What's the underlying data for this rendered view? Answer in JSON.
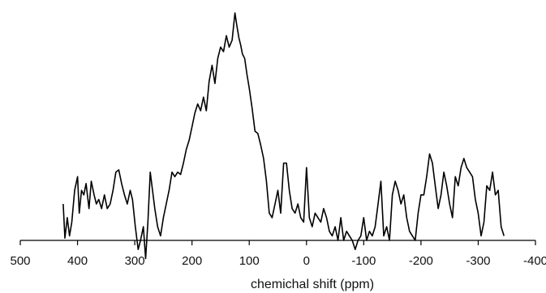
{
  "chart_data": {
    "type": "line",
    "title": "",
    "xlabel": "chemichal shift (ppm)",
    "ylabel": "",
    "xlim": [
      500,
      -400
    ],
    "x_reversed": true,
    "ylim": [
      0,
      100
    ],
    "y_axis_visible": false,
    "grid": false,
    "legend": "none",
    "x_ticks": [
      500,
      400,
      300,
      200,
      100,
      0,
      -100,
      -200,
      -300,
      -400
    ],
    "x_tick_labels": [
      "500",
      "400",
      "300",
      "200",
      "100",
      "0",
      "-100",
      "-200",
      "-300",
      "-400"
    ],
    "series": [
      {
        "color": "#000000",
        "x": [
          425,
          422,
          418,
          414,
          410,
          405,
          400,
          397,
          393,
          389,
          385,
          380,
          376,
          371,
          367,
          363,
          358,
          353,
          348,
          343,
          338,
          333,
          328,
          323,
          318,
          313,
          308,
          304,
          299,
          294,
          290,
          285,
          281,
          277,
          273,
          269,
          265,
          260,
          255,
          250,
          245,
          240,
          235,
          230,
          225,
          220,
          215,
          210,
          205,
          200,
          195,
          190,
          185,
          180,
          175,
          170,
          165,
          160,
          155,
          150,
          145,
          140,
          135,
          130,
          125,
          122,
          118,
          115,
          112,
          108,
          104,
          100,
          95,
          90,
          85,
          80,
          75,
          70,
          65,
          60,
          55,
          50,
          45,
          40,
          35,
          30,
          25,
          20,
          15,
          10,
          5,
          0,
          -5,
          -10,
          -15,
          -20,
          -25,
          -30,
          -35,
          -40,
          -45,
          -50,
          -55,
          -60,
          -65,
          -70,
          -75,
          -80,
          -85,
          -90,
          -95,
          -100,
          -105,
          -110,
          -115,
          -120,
          -125,
          -130,
          -135,
          -140,
          -145,
          -150,
          -155,
          -160,
          -165,
          -170,
          -175,
          -180,
          -185,
          -190,
          -195,
          -200,
          -205,
          -210,
          -215,
          -220,
          -225,
          -230,
          -235,
          -240,
          -245,
          -250,
          -255,
          -260,
          -265,
          -270,
          -275,
          -280,
          -285,
          -290,
          -295,
          -300,
          -305,
          -310,
          -315,
          -320,
          -325,
          -330,
          -335,
          -340,
          -345
        ],
        "y": [
          16,
          1,
          10,
          2,
          8,
          22,
          28,
          12,
          22,
          20,
          25,
          14,
          26,
          20,
          16,
          18,
          14,
          20,
          14,
          16,
          22,
          30,
          31,
          25,
          20,
          16,
          22,
          18,
          6,
          -4,
          0,
          6,
          -8,
          8,
          30,
          22,
          14,
          6,
          2,
          10,
          16,
          22,
          30,
          28,
          30,
          29,
          34,
          40,
          44,
          50,
          56,
          60,
          57,
          63,
          57,
          70,
          77,
          69,
          80,
          85,
          83,
          90,
          85,
          88,
          100,
          95,
          89,
          86,
          82,
          80,
          73,
          67,
          58,
          48,
          47,
          42,
          36,
          26,
          12,
          10,
          16,
          22,
          12,
          34,
          34,
          22,
          14,
          12,
          16,
          10,
          8,
          32,
          10,
          6,
          12,
          10,
          8,
          14,
          10,
          4,
          2,
          6,
          0,
          10,
          0,
          4,
          2,
          0,
          -4,
          0,
          2,
          10,
          0,
          4,
          2,
          6,
          16,
          26,
          2,
          6,
          0,
          20,
          26,
          22,
          16,
          20,
          10,
          4,
          2,
          0,
          12,
          20,
          20,
          28,
          38,
          34,
          24,
          14,
          20,
          30,
          24,
          16,
          10,
          28,
          24,
          32,
          36,
          32,
          30,
          28,
          18,
          12,
          2,
          8,
          24,
          22,
          30,
          20,
          22,
          6,
          2
        ]
      }
    ]
  }
}
